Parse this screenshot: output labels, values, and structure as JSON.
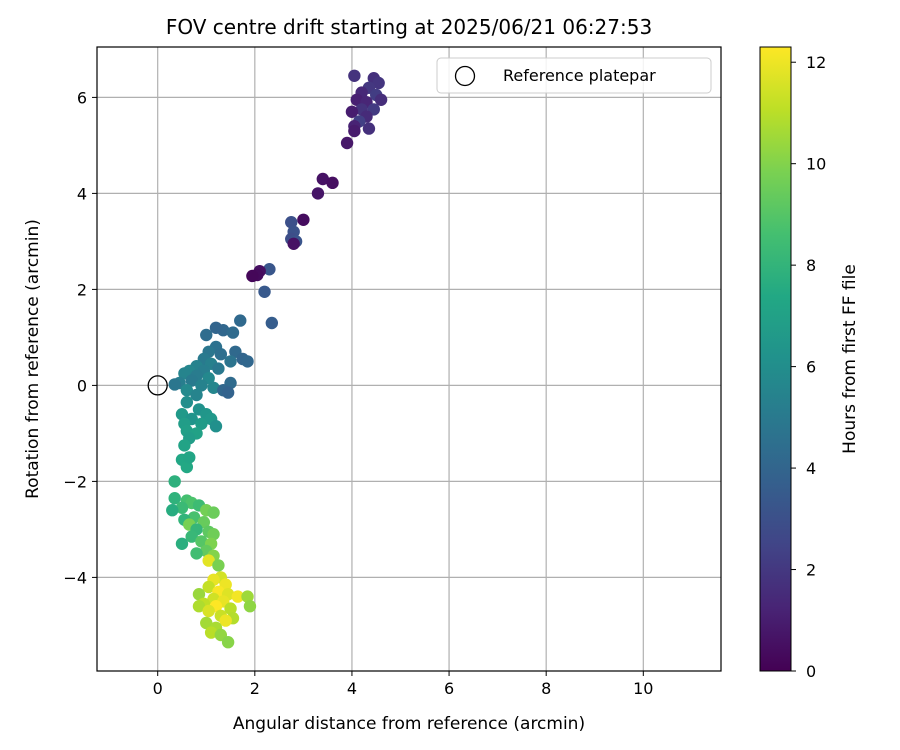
{
  "chart_data": {
    "type": "scatter",
    "title": "FOV centre drift starting at 2025/06/21 06:27:53",
    "xlabel": "Angular distance from reference (arcmin)",
    "ylabel": "Rotation from reference (arcmin)",
    "xlim": [
      -1.25,
      11.6
    ],
    "ylim": [
      -5.95,
      7.05
    ],
    "xticks": [
      0,
      2,
      4,
      6,
      8,
      10
    ],
    "yticks": [
      -4,
      -2,
      0,
      2,
      4,
      6
    ],
    "grid": true,
    "legend": {
      "location": "top-right",
      "entries": [
        "Reference platepar"
      ]
    },
    "reference_point": {
      "x": 0,
      "y": 0,
      "label": "Reference platepar"
    },
    "colorbar": {
      "label": "Hours from first FF file",
      "range": [
        0,
        12.3
      ],
      "ticks": [
        0,
        2,
        4,
        6,
        8,
        10,
        12
      ],
      "colormap": "viridis"
    },
    "points": [
      {
        "x": 4.05,
        "y": 6.45,
        "t": 1.8
      },
      {
        "x": 4.45,
        "y": 6.4,
        "t": 1.7
      },
      {
        "x": 4.55,
        "y": 6.3,
        "t": 1.9
      },
      {
        "x": 4.35,
        "y": 6.2,
        "t": 2.0
      },
      {
        "x": 4.2,
        "y": 6.1,
        "t": 1.4
      },
      {
        "x": 4.5,
        "y": 6.05,
        "t": 2.2
      },
      {
        "x": 4.1,
        "y": 5.95,
        "t": 1.1
      },
      {
        "x": 4.6,
        "y": 5.95,
        "t": 1.6
      },
      {
        "x": 4.3,
        "y": 5.9,
        "t": 1.3
      },
      {
        "x": 4.2,
        "y": 5.75,
        "t": 1.8
      },
      {
        "x": 4.45,
        "y": 5.75,
        "t": 2.1
      },
      {
        "x": 4.0,
        "y": 5.7,
        "t": 1.0
      },
      {
        "x": 4.3,
        "y": 5.6,
        "t": 1.5
      },
      {
        "x": 4.15,
        "y": 5.5,
        "t": 2.3
      },
      {
        "x": 4.05,
        "y": 5.4,
        "t": 1.2
      },
      {
        "x": 4.35,
        "y": 5.35,
        "t": 1.7
      },
      {
        "x": 4.05,
        "y": 5.3,
        "t": 0.9
      },
      {
        "x": 3.9,
        "y": 5.05,
        "t": 0.8
      },
      {
        "x": 3.4,
        "y": 4.3,
        "t": 0.6
      },
      {
        "x": 3.6,
        "y": 4.22,
        "t": 0.5
      },
      {
        "x": 3.3,
        "y": 4.0,
        "t": 0.7
      },
      {
        "x": 3.0,
        "y": 3.45,
        "t": 0.4
      },
      {
        "x": 2.75,
        "y": 3.4,
        "t": 3.0
      },
      {
        "x": 2.8,
        "y": 3.2,
        "t": 3.1
      },
      {
        "x": 2.75,
        "y": 3.05,
        "t": 2.9
      },
      {
        "x": 2.85,
        "y": 3.0,
        "t": 3.2
      },
      {
        "x": 2.8,
        "y": 2.95,
        "t": 0.6
      },
      {
        "x": 2.3,
        "y": 2.42,
        "t": 3.3
      },
      {
        "x": 2.1,
        "y": 2.38,
        "t": 0.5
      },
      {
        "x": 2.05,
        "y": 2.3,
        "t": 0.3
      },
      {
        "x": 1.95,
        "y": 2.28,
        "t": 0.2
      },
      {
        "x": 2.2,
        "y": 1.95,
        "t": 3.4
      },
      {
        "x": 2.35,
        "y": 1.3,
        "t": 3.6
      },
      {
        "x": 1.7,
        "y": 1.35,
        "t": 4.2
      },
      {
        "x": 1.35,
        "y": 1.15,
        "t": 4.1
      },
      {
        "x": 1.55,
        "y": 1.1,
        "t": 4.3
      },
      {
        "x": 1.2,
        "y": 1.2,
        "t": 4.0
      },
      {
        "x": 1.0,
        "y": 1.05,
        "t": 4.4
      },
      {
        "x": 1.2,
        "y": 0.8,
        "t": 4.6
      },
      {
        "x": 1.05,
        "y": 0.7,
        "t": 4.8
      },
      {
        "x": 1.3,
        "y": 0.65,
        "t": 4.5
      },
      {
        "x": 1.6,
        "y": 0.7,
        "t": 4.2
      },
      {
        "x": 1.75,
        "y": 0.55,
        "t": 4.0
      },
      {
        "x": 1.85,
        "y": 0.5,
        "t": 4.1
      },
      {
        "x": 1.5,
        "y": 0.5,
        "t": 4.7
      },
      {
        "x": 0.95,
        "y": 0.55,
        "t": 5.0
      },
      {
        "x": 1.1,
        "y": 0.45,
        "t": 5.3
      },
      {
        "x": 0.8,
        "y": 0.4,
        "t": 5.4
      },
      {
        "x": 0.65,
        "y": 0.3,
        "t": 5.6
      },
      {
        "x": 0.95,
        "y": 0.3,
        "t": 5.2
      },
      {
        "x": 1.25,
        "y": 0.35,
        "t": 4.9
      },
      {
        "x": 0.55,
        "y": 0.25,
        "t": 5.5
      },
      {
        "x": 0.8,
        "y": 0.2,
        "t": 5.1
      },
      {
        "x": 1.05,
        "y": 0.15,
        "t": 5.7
      },
      {
        "x": 0.7,
        "y": 0.1,
        "t": 5.0
      },
      {
        "x": 0.45,
        "y": 0.05,
        "t": 5.2
      },
      {
        "x": 0.35,
        "y": 0.02,
        "t": 4.8
      },
      {
        "x": 0.9,
        "y": 0.0,
        "t": 5.4
      },
      {
        "x": 1.15,
        "y": -0.05,
        "t": 5.6
      },
      {
        "x": 1.5,
        "y": 0.05,
        "t": 4.3
      },
      {
        "x": 1.35,
        "y": -0.1,
        "t": 4.1
      },
      {
        "x": 1.45,
        "y": -0.15,
        "t": 3.9
      },
      {
        "x": 0.6,
        "y": -0.1,
        "t": 5.8
      },
      {
        "x": 0.8,
        "y": -0.2,
        "t": 5.5
      },
      {
        "x": 0.6,
        "y": -0.35,
        "t": 6.0
      },
      {
        "x": 0.85,
        "y": -0.5,
        "t": 6.2
      },
      {
        "x": 1.0,
        "y": -0.6,
        "t": 6.4
      },
      {
        "x": 0.5,
        "y": -0.6,
        "t": 6.6
      },
      {
        "x": 0.7,
        "y": -0.7,
        "t": 6.3
      },
      {
        "x": 1.1,
        "y": -0.7,
        "t": 6.5
      },
      {
        "x": 0.55,
        "y": -0.8,
        "t": 6.8
      },
      {
        "x": 0.9,
        "y": -0.8,
        "t": 6.7
      },
      {
        "x": 1.2,
        "y": -0.85,
        "t": 6.1
      },
      {
        "x": 0.6,
        "y": -0.95,
        "t": 6.9
      },
      {
        "x": 0.8,
        "y": -1.0,
        "t": 7.0
      },
      {
        "x": 0.65,
        "y": -1.1,
        "t": 6.8
      },
      {
        "x": 0.55,
        "y": -1.25,
        "t": 7.1
      },
      {
        "x": 0.5,
        "y": -1.55,
        "t": 7.3
      },
      {
        "x": 0.6,
        "y": -1.7,
        "t": 7.4
      },
      {
        "x": 0.65,
        "y": -1.5,
        "t": 7.2
      },
      {
        "x": 0.35,
        "y": -2.0,
        "t": 7.8
      },
      {
        "x": 0.35,
        "y": -2.35,
        "t": 7.9
      },
      {
        "x": 0.6,
        "y": -2.4,
        "t": 8.6
      },
      {
        "x": 0.7,
        "y": -2.45,
        "t": 8.8
      },
      {
        "x": 0.85,
        "y": -2.5,
        "t": 8.4
      },
      {
        "x": 0.5,
        "y": -2.55,
        "t": 8.3
      },
      {
        "x": 0.3,
        "y": -2.6,
        "t": 7.6
      },
      {
        "x": 1.0,
        "y": -2.6,
        "t": 9.7
      },
      {
        "x": 1.15,
        "y": -2.65,
        "t": 9.5
      },
      {
        "x": 0.75,
        "y": -2.75,
        "t": 8.7
      },
      {
        "x": 0.55,
        "y": -2.8,
        "t": 8.0
      },
      {
        "x": 0.95,
        "y": -2.85,
        "t": 9.4
      },
      {
        "x": 0.65,
        "y": -2.9,
        "t": 9.8
      },
      {
        "x": 0.8,
        "y": -3.0,
        "t": 8.1
      },
      {
        "x": 1.05,
        "y": -3.05,
        "t": 9.2
      },
      {
        "x": 1.15,
        "y": -3.1,
        "t": 9.6
      },
      {
        "x": 0.7,
        "y": -3.15,
        "t": 8.2
      },
      {
        "x": 0.9,
        "y": -3.25,
        "t": 9.0
      },
      {
        "x": 0.5,
        "y": -3.3,
        "t": 7.7
      },
      {
        "x": 1.1,
        "y": -3.3,
        "t": 9.9
      },
      {
        "x": 1.0,
        "y": -3.45,
        "t": 9.3
      },
      {
        "x": 0.8,
        "y": -3.5,
        "t": 8.5
      },
      {
        "x": 1.15,
        "y": -3.55,
        "t": 10.0
      },
      {
        "x": 1.05,
        "y": -3.65,
        "t": 11.8
      },
      {
        "x": 1.25,
        "y": -3.75,
        "t": 9.8
      },
      {
        "x": 1.3,
        "y": -4.0,
        "t": 11.5
      },
      {
        "x": 1.15,
        "y": -4.05,
        "t": 11.9
      },
      {
        "x": 1.4,
        "y": -4.15,
        "t": 12.0
      },
      {
        "x": 1.05,
        "y": -4.2,
        "t": 11.2
      },
      {
        "x": 1.25,
        "y": -4.3,
        "t": 12.2
      },
      {
        "x": 0.85,
        "y": -4.35,
        "t": 10.4
      },
      {
        "x": 1.45,
        "y": -4.35,
        "t": 11.7
      },
      {
        "x": 1.65,
        "y": -4.4,
        "t": 12.1
      },
      {
        "x": 1.85,
        "y": -4.4,
        "t": 10.5
      },
      {
        "x": 1.15,
        "y": -4.45,
        "t": 11.4
      },
      {
        "x": 1.35,
        "y": -4.5,
        "t": 11.9
      },
      {
        "x": 0.95,
        "y": -4.55,
        "t": 11.1
      },
      {
        "x": 1.9,
        "y": -4.6,
        "t": 10.2
      },
      {
        "x": 1.2,
        "y": -4.6,
        "t": 12.3
      },
      {
        "x": 0.85,
        "y": -4.6,
        "t": 10.8
      },
      {
        "x": 1.5,
        "y": -4.65,
        "t": 11.0
      },
      {
        "x": 1.05,
        "y": -4.7,
        "t": 11.6
      },
      {
        "x": 1.3,
        "y": -4.8,
        "t": 11.3
      },
      {
        "x": 1.55,
        "y": -4.85,
        "t": 10.9
      },
      {
        "x": 1.4,
        "y": -4.9,
        "t": 12.0
      },
      {
        "x": 1.0,
        "y": -4.95,
        "t": 10.6
      },
      {
        "x": 1.2,
        "y": -5.05,
        "t": 10.7
      },
      {
        "x": 1.1,
        "y": -5.15,
        "t": 11.0
      },
      {
        "x": 1.3,
        "y": -5.2,
        "t": 10.3
      },
      {
        "x": 1.45,
        "y": -5.35,
        "t": 10.1
      }
    ]
  }
}
